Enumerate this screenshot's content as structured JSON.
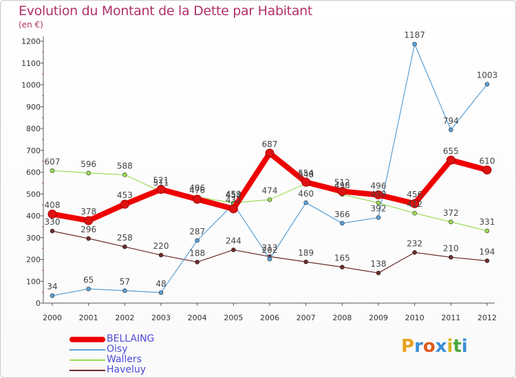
{
  "header": {
    "title": "Evolution du Montant de la Dette par Habitant",
    "subtitle": "(en €)"
  },
  "logo": {
    "text": "Proxiti",
    "letter_colors": [
      "#e8a21c",
      "#3a8fd6",
      "#e05a1c",
      "#3a8fd6",
      "#d8b21c",
      "#4aa83a",
      "#3a8fd6"
    ]
  },
  "chart_data": {
    "type": "line",
    "title": "Evolution du Montant de la Dette par Habitant",
    "subtitle": "(en €)",
    "xlabel": "",
    "ylabel": "",
    "x": [
      2000,
      2001,
      2002,
      2003,
      2004,
      2005,
      2006,
      2007,
      2008,
      2009,
      2010,
      2011,
      2012
    ],
    "ylim": [
      0,
      1200
    ],
    "yticks": [
      0,
      100,
      200,
      300,
      400,
      500,
      600,
      700,
      800,
      900,
      1000,
      1100,
      1200
    ],
    "grid": false,
    "legend_position": "bottom-left",
    "series": [
      {
        "name": "BELLAING",
        "color": "#ee0000",
        "width": 8,
        "values": [
          408,
          378,
          453,
          521,
          476,
          432,
          687,
          554,
          512,
          496,
          456,
          655,
          610
        ]
      },
      {
        "name": "Oisy",
        "color": "#5a9fd4",
        "width": 1.2,
        "values": [
          34,
          65,
          57,
          48,
          287,
          454,
          202,
          460,
          366,
          392,
          1187,
          794,
          1003
        ]
      },
      {
        "name": "Wallers",
        "color": "#99dd55",
        "width": 1.2,
        "values": [
          607,
          596,
          588,
          511,
          486,
          459,
          474,
          548,
          498,
          459,
          412,
          372,
          331
        ]
      },
      {
        "name": "Haveluy",
        "color": "#6b2a2a",
        "width": 1.2,
        "values": [
          330,
          296,
          258,
          220,
          188,
          244,
          213,
          189,
          165,
          138,
          232,
          210,
          194
        ]
      }
    ]
  }
}
